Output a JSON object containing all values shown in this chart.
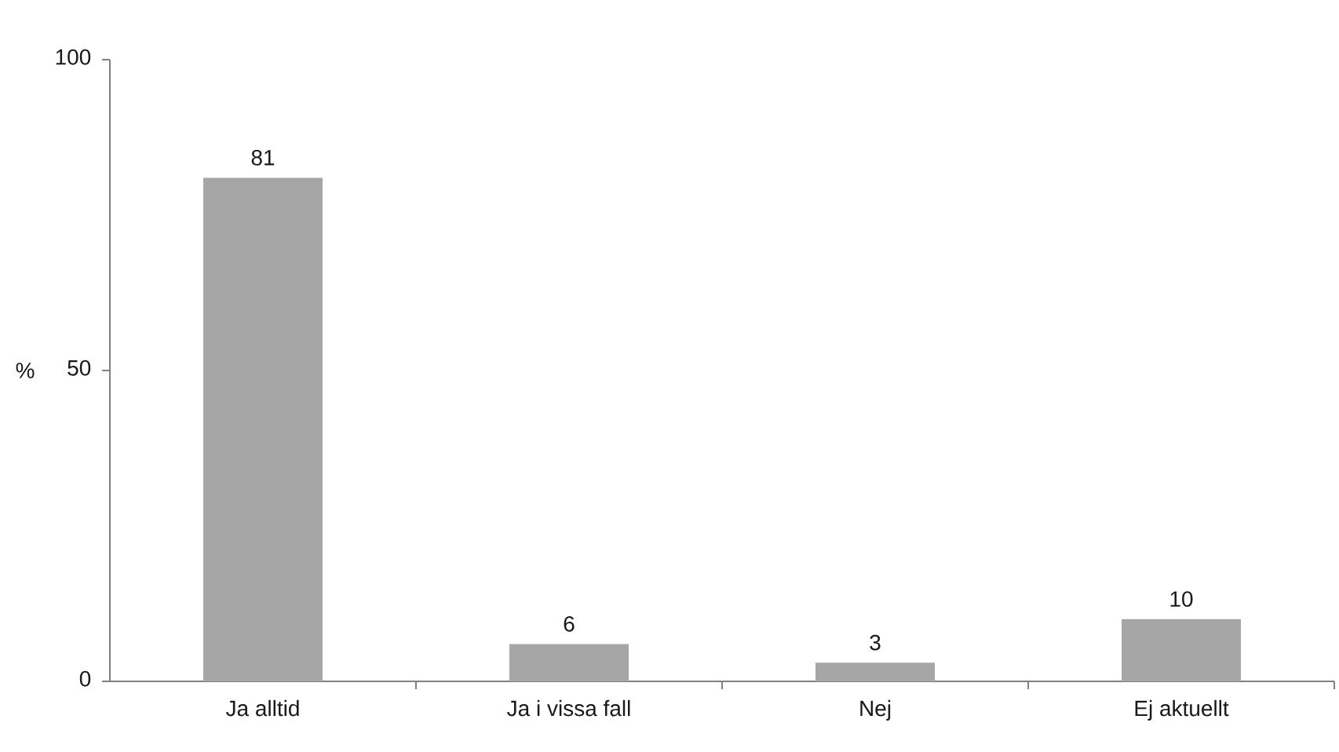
{
  "chart_data": {
    "type": "bar",
    "ylabel": "%",
    "categories": [
      "Ja alltid",
      "Ja i vissa fall",
      "Nej",
      "Ej aktuellt"
    ],
    "values": [
      81,
      6,
      3,
      10
    ],
    "color": "#a6a6a6",
    "ylim": [
      0,
      100
    ],
    "yticks": [
      0,
      50,
      100
    ],
    "data_labels": true
  }
}
